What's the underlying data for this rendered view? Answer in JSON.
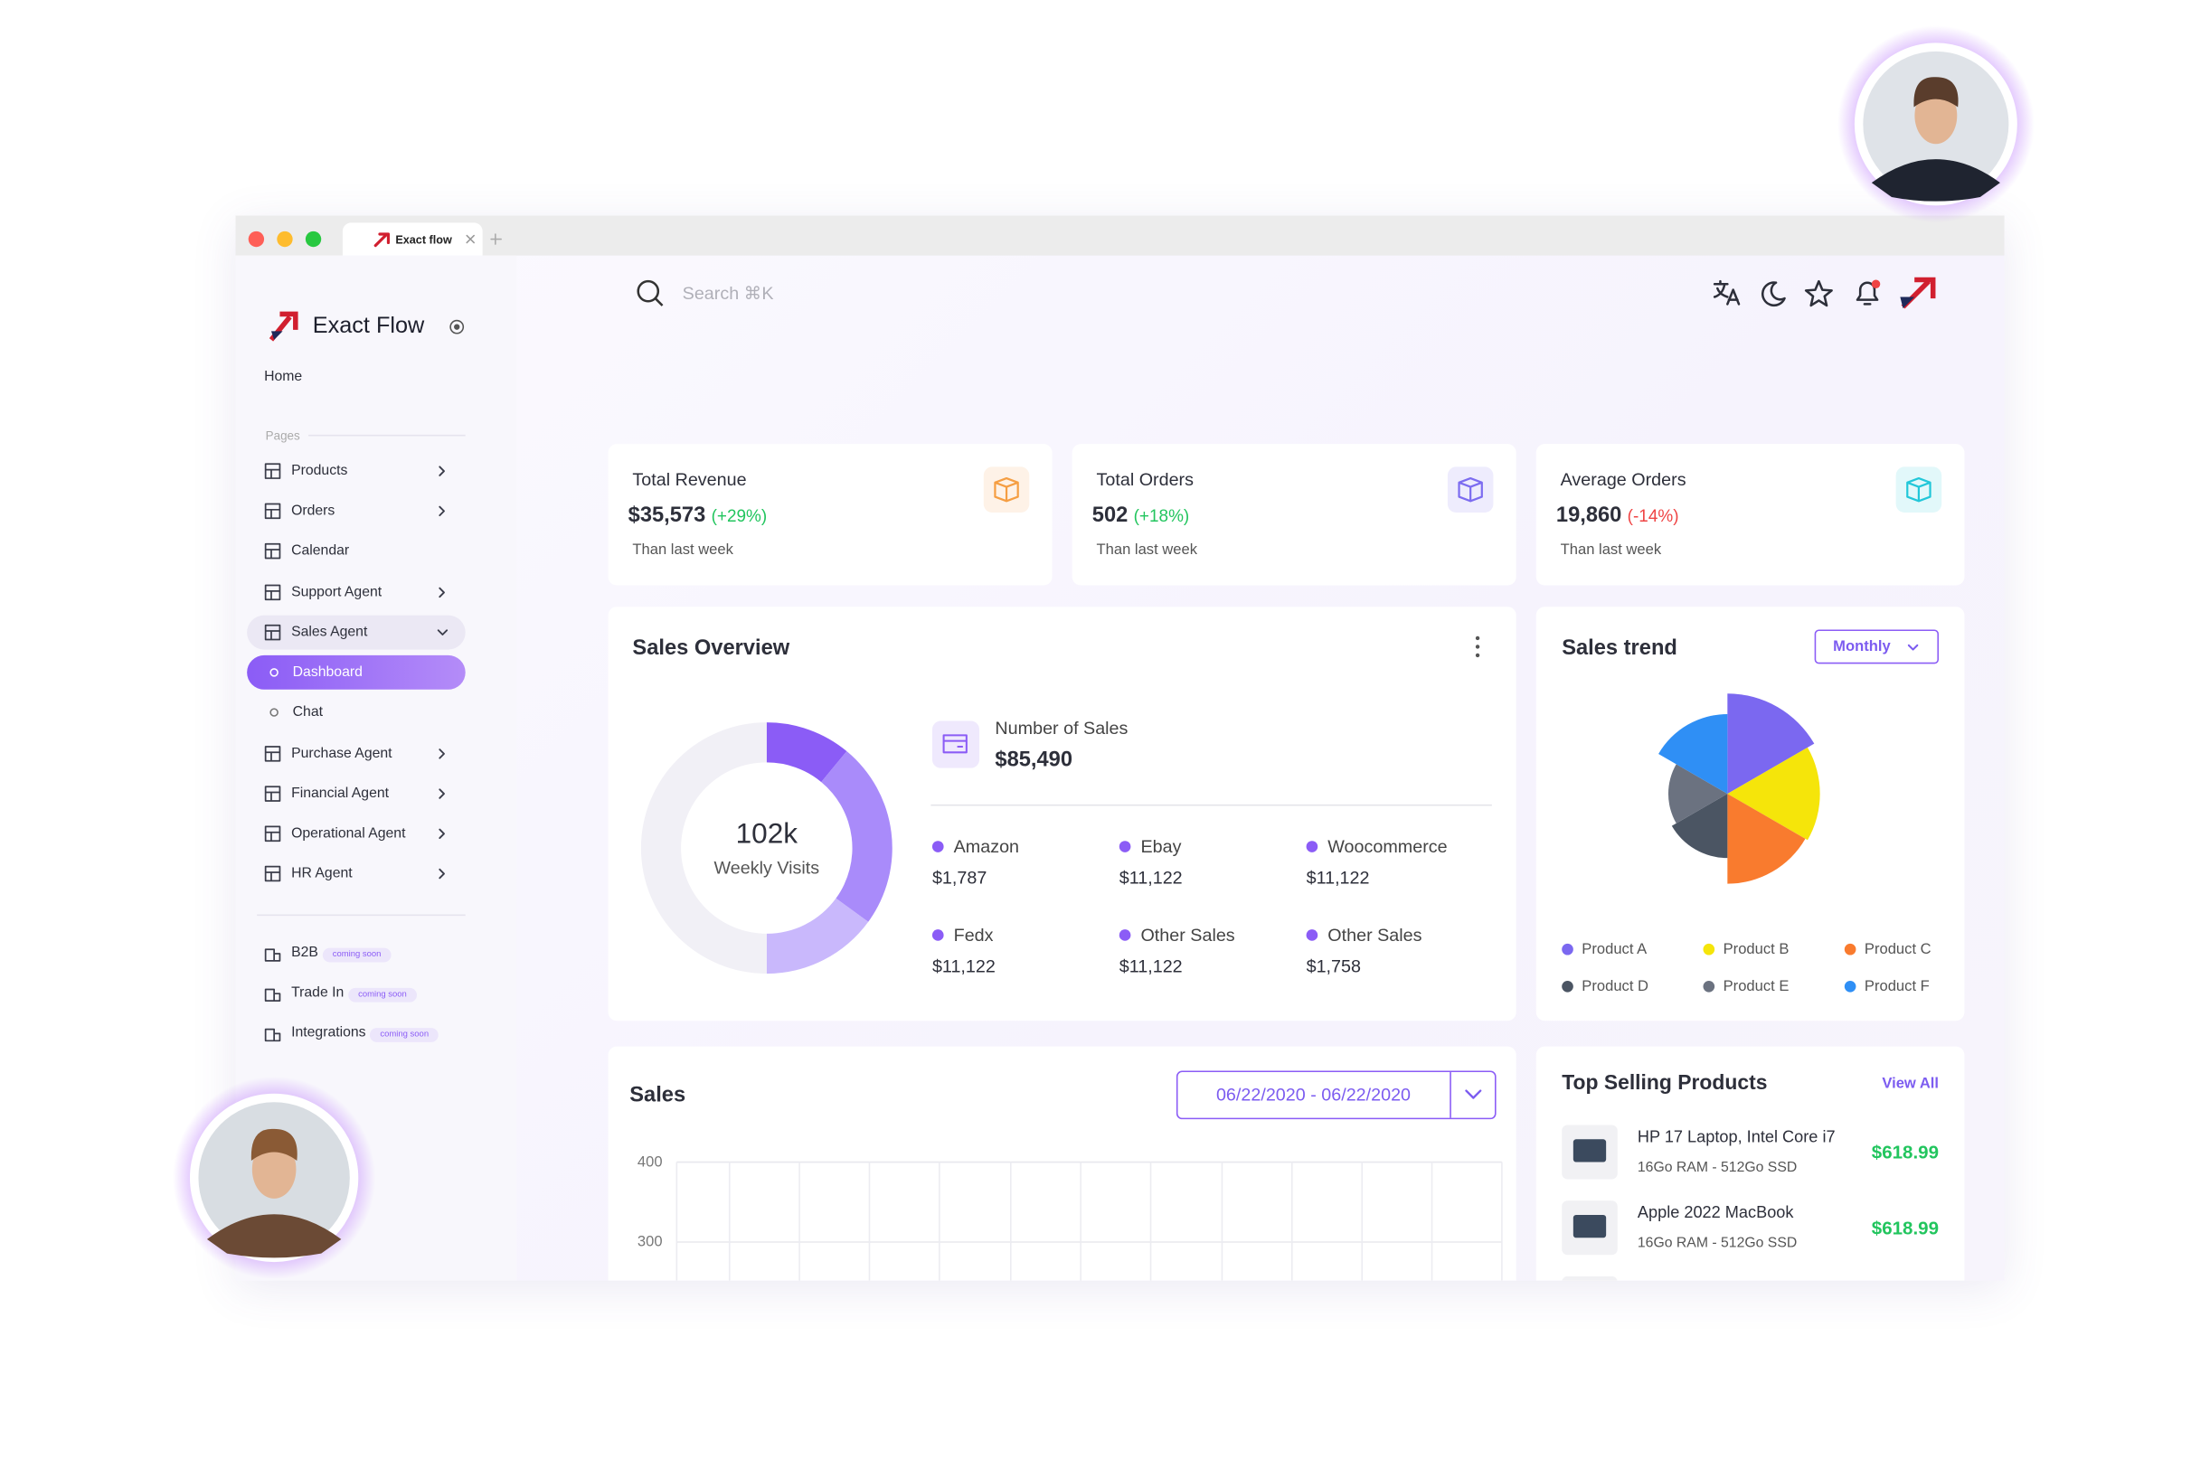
{
  "browser": {
    "tab": "Exact flow"
  },
  "sidebar": {
    "brand": "Exact Flow",
    "home": "Home",
    "section": "Pages",
    "items": [
      {
        "label": "Products",
        "arrow": "right"
      },
      {
        "label": "Orders",
        "arrow": "right"
      },
      {
        "label": "Calendar"
      },
      {
        "label": "Support Agent",
        "arrow": "right"
      },
      {
        "label": "Sales Agent",
        "arrow": "down"
      },
      {
        "label": "Dashboard",
        "sub": true,
        "active": true
      },
      {
        "label": "Chat",
        "sub": true
      },
      {
        "label": "Purchase Agent",
        "arrow": "right"
      },
      {
        "label": "Financial Agent",
        "arrow": "right"
      },
      {
        "label": "Operational Agent",
        "arrow": "right"
      },
      {
        "label": "HR Agent",
        "arrow": "right"
      }
    ],
    "extras": [
      {
        "label": "B2B",
        "badge": "coming soon"
      },
      {
        "label": "Trade In",
        "badge": "coming soon"
      },
      {
        "label": "Integrations",
        "badge": "coming soon"
      }
    ]
  },
  "search": "Search ⌘K",
  "stats": [
    {
      "title": "Total Revenue",
      "value": "$35,573",
      "change": "(+29%)",
      "trend": "up",
      "note": "Than last week",
      "icon_color": "#f59e42"
    },
    {
      "title": "Total Orders",
      "value": "502",
      "change": "(+18%)",
      "trend": "up",
      "note": "Than last week",
      "icon_color": "#7c6cf0"
    },
    {
      "title": "Average Orders",
      "value": "19,860",
      "change": "(-14%)",
      "trend": "down",
      "note": "Than last week",
      "icon_color": "#22c7d9"
    }
  ],
  "sales_overview": {
    "title": "Sales Overview",
    "center_value": "102k",
    "center_label": "Weekly Visits",
    "total_label": "Number of Sales",
    "total_value": "$85,490",
    "channels": [
      {
        "name": "Amazon",
        "value": "$1,787"
      },
      {
        "name": "Ebay",
        "value": "$11,122"
      },
      {
        "name": "Woocommerce",
        "value": "$11,122"
      },
      {
        "name": "Fedx",
        "value": "$11,122"
      },
      {
        "name": "Other Sales",
        "value": "$11,122"
      },
      {
        "name": "Other Sales",
        "value": "$1,758"
      }
    ],
    "donut": {
      "values": [
        11,
        24,
        15,
        50
      ],
      "colors": [
        "#8b5cf6",
        "#a98bfa",
        "#c9b8fc",
        "#f1f0f6"
      ]
    }
  },
  "sales_trend": {
    "title": "Sales trend",
    "period": "Monthly",
    "rlim": [
      0,
      100
    ],
    "products": [
      {
        "name": "Product A",
        "color": "#7b68f0",
        "value": 78
      },
      {
        "name": "Product B",
        "color": "#f5e50a",
        "value": 72
      },
      {
        "name": "Product C",
        "color": "#f97b2e",
        "value": 70
      },
      {
        "name": "Product D",
        "color": "#4b5563",
        "value": 50
      },
      {
        "name": "Product E",
        "color": "#6b7280",
        "value": 46
      },
      {
        "name": "Product F",
        "color": "#2f8ff5",
        "value": 62
      }
    ]
  },
  "sales_chart": {
    "title": "Sales",
    "date_range": "06/22/2020 - 06/22/2020",
    "ylim": [
      0,
      400
    ],
    "yticks": [
      400,
      300
    ]
  },
  "top_selling": {
    "title": "Top Selling Products",
    "link": "View All",
    "products": [
      {
        "name": "HP 17 Laptop, Intel Core i7",
        "spec": "16Go RAM - 512Go SSD",
        "price": "$618.99"
      },
      {
        "name": "Apple 2022 MacBook",
        "spec": "16Go RAM - 512Go SSD",
        "price": "$618.99"
      }
    ]
  }
}
